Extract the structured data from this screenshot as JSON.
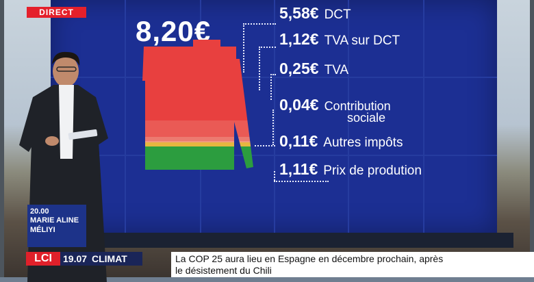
{
  "live_badge": "DIRECT",
  "graphic": {
    "total": "8,20€",
    "items": [
      {
        "amount": "5,58€",
        "label": "DCT"
      },
      {
        "amount": "1,12€",
        "label": "TVA sur DCT"
      },
      {
        "amount": "0,25€",
        "label": "TVA"
      },
      {
        "amount": "0,04€",
        "label": "Contribution",
        "label2": "sociale"
      },
      {
        "amount": "0,11€",
        "label": "Autres impôts"
      },
      {
        "amount": "1,11€",
        "label": "Prix de prodution"
      }
    ],
    "colors": {
      "red": "#e8403f",
      "salmon": "#ec7a70",
      "yellow": "#e7b640",
      "green": "#2c9d3f",
      "screen": "#1c2f93"
    }
  },
  "presenter_tag": {
    "time": "20.00",
    "name_line1": "MARIE ALINE",
    "name_line2": "MÉLIYI"
  },
  "ticker": {
    "logo": "LCI",
    "time": "19.07",
    "topic": "CLIMAT",
    "headline_line1": "La COP 25 aura lieu en Espagne en décembre prochain, après",
    "headline_line2": "le désistement du Chili"
  }
}
